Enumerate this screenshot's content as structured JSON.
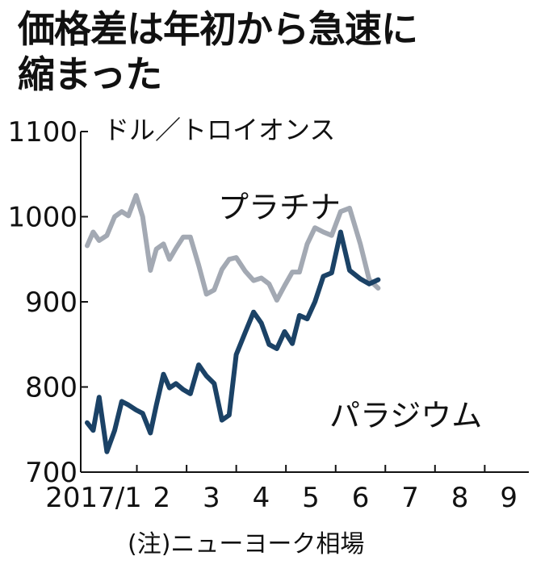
{
  "title_lines": [
    "価格差は年初から急速に",
    "縮まった"
  ],
  "chart_data": {
    "type": "line",
    "title": "価格差は年初から急速に縮まった",
    "unit": "ドル／トロイオンス",
    "note": "(注)ニューヨーク相場",
    "ylim": [
      700,
      1100
    ],
    "yticks": [
      700,
      800,
      900,
      1000,
      1100
    ],
    "xlim": [
      2017.0,
      2017.78
    ],
    "xticks": [
      {
        "label": "2017/1",
        "x": 2017.0
      },
      {
        "label": "2",
        "x": 2017.0833
      },
      {
        "label": "3",
        "x": 2017.1667
      },
      {
        "label": "4",
        "x": 2017.25
      },
      {
        "label": "5",
        "x": 2017.3333
      },
      {
        "label": "6",
        "x": 2017.4167
      },
      {
        "label": "7",
        "x": 2017.5
      },
      {
        "label": "8",
        "x": 2017.5833
      },
      {
        "label": "9",
        "x": 2017.6667
      }
    ],
    "series": [
      {
        "name": "プラチナ",
        "color": "#a3a9b3",
        "points": [
          [
            2017.0,
            966
          ],
          [
            2017.01,
            982
          ],
          [
            2017.02,
            972
          ],
          [
            2017.033,
            978
          ],
          [
            2017.046,
            1000
          ],
          [
            2017.058,
            1006
          ],
          [
            2017.069,
            1001
          ],
          [
            2017.082,
            1025
          ],
          [
            2017.093,
            1000
          ],
          [
            2017.106,
            937
          ],
          [
            2017.116,
            962
          ],
          [
            2017.128,
            968
          ],
          [
            2017.138,
            950
          ],
          [
            2017.149,
            963
          ],
          [
            2017.161,
            976
          ],
          [
            2017.173,
            976
          ],
          [
            2017.187,
            943
          ],
          [
            2017.2,
            909
          ],
          [
            2017.213,
            914
          ],
          [
            2017.226,
            938
          ],
          [
            2017.238,
            950
          ],
          [
            2017.25,
            952
          ],
          [
            2017.265,
            936
          ],
          [
            2017.279,
            925
          ],
          [
            2017.292,
            928
          ],
          [
            2017.305,
            921
          ],
          [
            2017.318,
            902
          ],
          [
            2017.331,
            919
          ],
          [
            2017.344,
            935
          ],
          [
            2017.356,
            935
          ],
          [
            2017.369,
            968
          ],
          [
            2017.382,
            987
          ],
          [
            2017.396,
            982
          ],
          [
            2017.41,
            978
          ],
          [
            2017.425,
            1006
          ],
          [
            2017.44,
            1010
          ],
          [
            2017.458,
            968
          ],
          [
            2017.473,
            926
          ],
          [
            2017.488,
            916
          ]
        ]
      },
      {
        "name": "パラジウム",
        "color": "#1b4266",
        "points": [
          [
            2017.0,
            758
          ],
          [
            2017.01,
            749
          ],
          [
            2017.02,
            788
          ],
          [
            2017.033,
            724
          ],
          [
            2017.046,
            749
          ],
          [
            2017.058,
            783
          ],
          [
            2017.069,
            779
          ],
          [
            2017.082,
            773
          ],
          [
            2017.093,
            769
          ],
          [
            2017.106,
            746
          ],
          [
            2017.116,
            779
          ],
          [
            2017.128,
            815
          ],
          [
            2017.138,
            799
          ],
          [
            2017.149,
            804
          ],
          [
            2017.161,
            797
          ],
          [
            2017.173,
            792
          ],
          [
            2017.187,
            826
          ],
          [
            2017.2,
            813
          ],
          [
            2017.213,
            804
          ],
          [
            2017.226,
            761
          ],
          [
            2017.238,
            767
          ],
          [
            2017.25,
            838
          ],
          [
            2017.265,
            864
          ],
          [
            2017.279,
            888
          ],
          [
            2017.292,
            875
          ],
          [
            2017.305,
            850
          ],
          [
            2017.318,
            845
          ],
          [
            2017.331,
            865
          ],
          [
            2017.344,
            851
          ],
          [
            2017.356,
            884
          ],
          [
            2017.369,
            880
          ],
          [
            2017.382,
            900
          ],
          [
            2017.396,
            930
          ],
          [
            2017.41,
            934
          ],
          [
            2017.425,
            982
          ],
          [
            2017.44,
            937
          ],
          [
            2017.458,
            927
          ],
          [
            2017.473,
            921
          ],
          [
            2017.488,
            926
          ]
        ]
      }
    ]
  }
}
